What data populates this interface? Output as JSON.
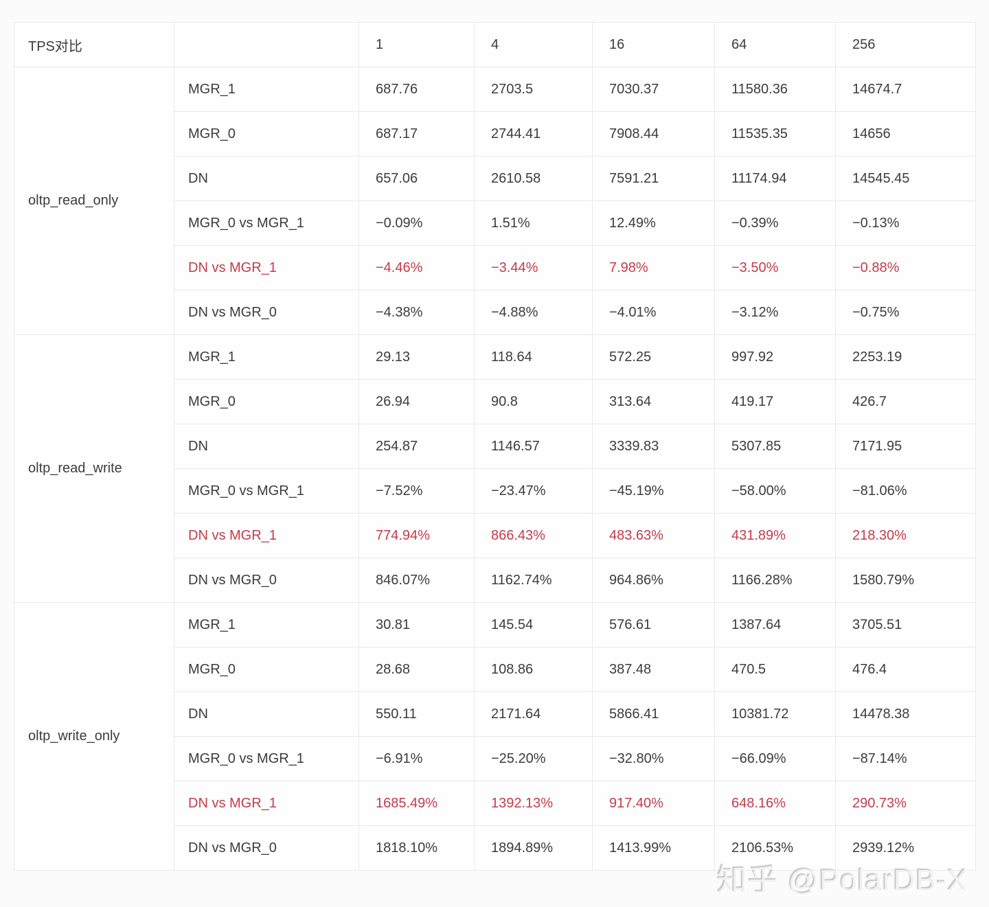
{
  "colors": {
    "accent_red": "#c13c4a",
    "text": "#3c3c3c",
    "border": "#e9e9e9",
    "page_bg": "#fbfbfb",
    "cell_bg": "#fefefe"
  },
  "watermark": {
    "text": "知乎 @PolarDB-X"
  },
  "chart_data": {
    "type": "table",
    "title": "TPS对比",
    "title_note": "first header column, second header column is empty",
    "thread_counts": [
      "1",
      "4",
      "16",
      "64",
      "256"
    ],
    "groups": [
      {
        "name": "oltp_read_only",
        "rows": [
          {
            "label": "MGR_1",
            "highlighted": false,
            "values": [
              "687.76",
              "2703.5",
              "7030.37",
              "11580.36",
              "14674.7"
            ]
          },
          {
            "label": "MGR_0",
            "highlighted": false,
            "values": [
              "687.17",
              "2744.41",
              "7908.44",
              "11535.35",
              "14656"
            ]
          },
          {
            "label": "DN",
            "highlighted": false,
            "values": [
              "657.06",
              "2610.58",
              "7591.21",
              "11174.94",
              "14545.45"
            ]
          },
          {
            "label": "MGR_0 vs MGR_1",
            "highlighted": false,
            "values": [
              "−0.09%",
              "1.51%",
              "12.49%",
              "−0.39%",
              "−0.13%"
            ]
          },
          {
            "label": "DN vs MGR_1",
            "highlighted": true,
            "values": [
              "−4.46%",
              "−3.44%",
              "7.98%",
              "−3.50%",
              "−0.88%"
            ]
          },
          {
            "label": "DN vs MGR_0",
            "highlighted": false,
            "values": [
              "−4.38%",
              "−4.88%",
              "−4.01%",
              "−3.12%",
              "−0.75%"
            ]
          }
        ]
      },
      {
        "name": "oltp_read_write",
        "rows": [
          {
            "label": "MGR_1",
            "highlighted": false,
            "values": [
              "29.13",
              "118.64",
              "572.25",
              "997.92",
              "2253.19"
            ]
          },
          {
            "label": "MGR_0",
            "highlighted": false,
            "values": [
              "26.94",
              "90.8",
              "313.64",
              "419.17",
              "426.7"
            ]
          },
          {
            "label": "DN",
            "highlighted": false,
            "values": [
              "254.87",
              "1146.57",
              "3339.83",
              "5307.85",
              "7171.95"
            ]
          },
          {
            "label": "MGR_0 vs MGR_1",
            "highlighted": false,
            "values": [
              "−7.52%",
              "−23.47%",
              "−45.19%",
              "−58.00%",
              "−81.06%"
            ]
          },
          {
            "label": "DN vs MGR_1",
            "highlighted": true,
            "values": [
              "774.94%",
              "866.43%",
              "483.63%",
              "431.89%",
              "218.30%"
            ]
          },
          {
            "label": "DN vs MGR_0",
            "highlighted": false,
            "values": [
              "846.07%",
              "1162.74%",
              "964.86%",
              "1166.28%",
              "1580.79%"
            ]
          }
        ]
      },
      {
        "name": "oltp_write_only",
        "rows": [
          {
            "label": "MGR_1",
            "highlighted": false,
            "values": [
              "30.81",
              "145.54",
              "576.61",
              "1387.64",
              "3705.51"
            ]
          },
          {
            "label": "MGR_0",
            "highlighted": false,
            "values": [
              "28.68",
              "108.86",
              "387.48",
              "470.5",
              "476.4"
            ]
          },
          {
            "label": "DN",
            "highlighted": false,
            "values": [
              "550.11",
              "2171.64",
              "5866.41",
              "10381.72",
              "14478.38"
            ]
          },
          {
            "label": "MGR_0 vs MGR_1",
            "highlighted": false,
            "values": [
              "−6.91%",
              "−25.20%",
              "−32.80%",
              "−66.09%",
              "−87.14%"
            ]
          },
          {
            "label": "DN vs MGR_1",
            "highlighted": true,
            "values": [
              "1685.49%",
              "1392.13%",
              "917.40%",
              "648.16%",
              "290.73%"
            ]
          },
          {
            "label": "DN vs MGR_0",
            "highlighted": false,
            "values": [
              "1818.10%",
              "1894.89%",
              "1413.99%",
              "2106.53%",
              "2939.12%"
            ]
          }
        ]
      }
    ]
  }
}
